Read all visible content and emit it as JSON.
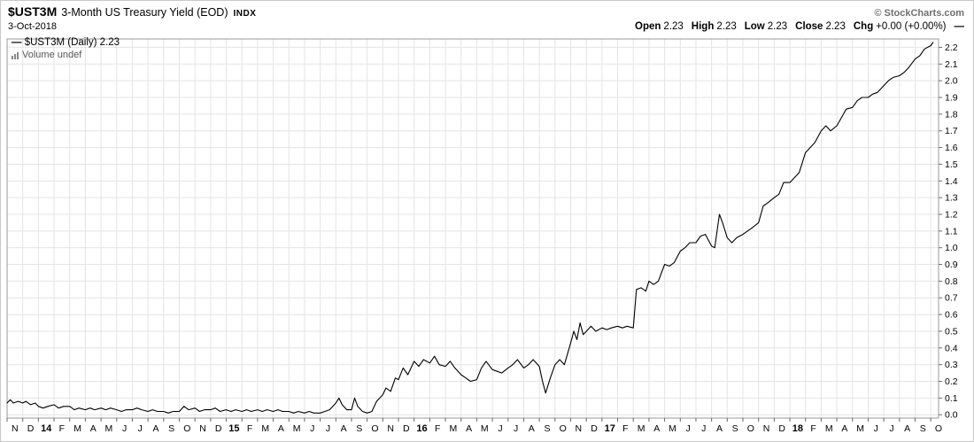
{
  "header": {
    "symbol": "$UST3M",
    "title": "3-Month US Treasury Yield (EOD)",
    "exchange": "INDX",
    "copyright": "© StockCharts.com",
    "date": "3-Oct-2018",
    "dash": "—",
    "quote": {
      "items": [
        {
          "label": "Open",
          "value": "2.23"
        },
        {
          "label": "High",
          "value": "2.23"
        },
        {
          "label": "Low",
          "value": "2.23"
        },
        {
          "label": "Close",
          "value": "2.23"
        },
        {
          "label": "Chg",
          "value": "+0.00 (+0.00%)"
        }
      ]
    }
  },
  "legend": {
    "marker": "—",
    "series_text": "$UST3M (Daily) 2.23",
    "volume_text": "Volume undef"
  },
  "colors": {
    "line": "#000000",
    "grid": "#e4e4e4",
    "axis": "#999999",
    "tick": "#666666",
    "text": "#000000",
    "muted": "#707070"
  },
  "chart_data": {
    "type": "line",
    "title": "$UST3M 3-Month US Treasury Yield (EOD) INDX",
    "xlabel": "",
    "ylabel": "",
    "x_unit": "months since Nov 2013",
    "xlim": [
      0,
      59.5
    ],
    "ylim": [
      -0.02,
      2.25
    ],
    "grid": true,
    "legend_position": "top-left",
    "last_value": 2.23,
    "yticks": [
      "0.0",
      "0.1",
      "0.2",
      "0.3",
      "0.4",
      "0.5",
      "0.6",
      "0.7",
      "0.8",
      "0.9",
      "1.0",
      "1.1",
      "1.2",
      "1.3",
      "1.4",
      "1.5",
      "1.6",
      "1.7",
      "1.8",
      "1.9",
      "2.0",
      "2.1",
      "2.2"
    ],
    "x_labels": [
      "N",
      "D",
      "14",
      "F",
      "M",
      "A",
      "M",
      "J",
      "J",
      "A",
      "S",
      "O",
      "N",
      "D",
      "15",
      "F",
      "M",
      "A",
      "M",
      "J",
      "J",
      "A",
      "S",
      "O",
      "N",
      "D",
      "16",
      "F",
      "M",
      "A",
      "M",
      "J",
      "J",
      "A",
      "S",
      "O",
      "N",
      "D",
      "17",
      "F",
      "M",
      "A",
      "M",
      "J",
      "J",
      "A",
      "S",
      "O",
      "N",
      "D",
      "18",
      "F",
      "M",
      "A",
      "M",
      "J",
      "J",
      "A",
      "S",
      "O"
    ],
    "series": [
      {
        "name": "$UST3M Daily Close",
        "color": "#000000",
        "points": [
          [
            0,
            0.07
          ],
          [
            0.2,
            0.09
          ],
          [
            0.4,
            0.07
          ],
          [
            0.7,
            0.08
          ],
          [
            1,
            0.07
          ],
          [
            1.2,
            0.08
          ],
          [
            1.5,
            0.06
          ],
          [
            1.8,
            0.07
          ],
          [
            2,
            0.05
          ],
          [
            2.3,
            0.04
          ],
          [
            2.6,
            0.05
          ],
          [
            3,
            0.06
          ],
          [
            3.3,
            0.04
          ],
          [
            3.6,
            0.05
          ],
          [
            4,
            0.05
          ],
          [
            4.3,
            0.03
          ],
          [
            4.6,
            0.04
          ],
          [
            5,
            0.03
          ],
          [
            5.3,
            0.04
          ],
          [
            5.6,
            0.03
          ],
          [
            6,
            0.04
          ],
          [
            6.3,
            0.03
          ],
          [
            6.6,
            0.04
          ],
          [
            7,
            0.03
          ],
          [
            7.3,
            0.02
          ],
          [
            7.6,
            0.03
          ],
          [
            8,
            0.03
          ],
          [
            8.3,
            0.04
          ],
          [
            8.6,
            0.03
          ],
          [
            9,
            0.02
          ],
          [
            9.3,
            0.03
          ],
          [
            9.6,
            0.02
          ],
          [
            10,
            0.02
          ],
          [
            10.3,
            0.01
          ],
          [
            10.6,
            0.02
          ],
          [
            11,
            0.02
          ],
          [
            11.3,
            0.05
          ],
          [
            11.6,
            0.03
          ],
          [
            12,
            0.04
          ],
          [
            12.3,
            0.02
          ],
          [
            12.6,
            0.03
          ],
          [
            13,
            0.03
          ],
          [
            13.3,
            0.04
          ],
          [
            13.6,
            0.02
          ],
          [
            14,
            0.03
          ],
          [
            14.3,
            0.02
          ],
          [
            14.6,
            0.03
          ],
          [
            15,
            0.02
          ],
          [
            15.3,
            0.03
          ],
          [
            15.6,
            0.02
          ],
          [
            16,
            0.03
          ],
          [
            16.3,
            0.02
          ],
          [
            16.6,
            0.03
          ],
          [
            17,
            0.02
          ],
          [
            17.3,
            0.03
          ],
          [
            17.6,
            0.02
          ],
          [
            18,
            0.02
          ],
          [
            18.3,
            0.01
          ],
          [
            18.6,
            0.02
          ],
          [
            19,
            0.01
          ],
          [
            19.3,
            0.02
          ],
          [
            19.6,
            0.01
          ],
          [
            20,
            0.01
          ],
          [
            20.3,
            0.02
          ],
          [
            20.6,
            0.03
          ],
          [
            21,
            0.07
          ],
          [
            21.2,
            0.1
          ],
          [
            21.4,
            0.06
          ],
          [
            21.7,
            0.03
          ],
          [
            22,
            0.03
          ],
          [
            22.2,
            0.1
          ],
          [
            22.4,
            0.05
          ],
          [
            22.7,
            0.02
          ],
          [
            23,
            0.01
          ],
          [
            23.3,
            0.02
          ],
          [
            23.6,
            0.08
          ],
          [
            24,
            0.12
          ],
          [
            24.2,
            0.16
          ],
          [
            24.5,
            0.14
          ],
          [
            24.8,
            0.22
          ],
          [
            25,
            0.21
          ],
          [
            25.3,
            0.28
          ],
          [
            25.6,
            0.24
          ],
          [
            26,
            0.32
          ],
          [
            26.3,
            0.29
          ],
          [
            26.6,
            0.33
          ],
          [
            27,
            0.31
          ],
          [
            27.3,
            0.35
          ],
          [
            27.6,
            0.3
          ],
          [
            28,
            0.29
          ],
          [
            28.3,
            0.32
          ],
          [
            28.6,
            0.28
          ],
          [
            29,
            0.24
          ],
          [
            29.3,
            0.22
          ],
          [
            29.6,
            0.2
          ],
          [
            30,
            0.21
          ],
          [
            30.3,
            0.28
          ],
          [
            30.6,
            0.32
          ],
          [
            31,
            0.27
          ],
          [
            31.3,
            0.26
          ],
          [
            31.6,
            0.25
          ],
          [
            32,
            0.28
          ],
          [
            32.3,
            0.3
          ],
          [
            32.6,
            0.33
          ],
          [
            33,
            0.28
          ],
          [
            33.3,
            0.3
          ],
          [
            33.6,
            0.33
          ],
          [
            34,
            0.29
          ],
          [
            34.2,
            0.2
          ],
          [
            34.4,
            0.13
          ],
          [
            34.7,
            0.22
          ],
          [
            35,
            0.3
          ],
          [
            35.3,
            0.33
          ],
          [
            35.6,
            0.3
          ],
          [
            36,
            0.43
          ],
          [
            36.2,
            0.5
          ],
          [
            36.4,
            0.45
          ],
          [
            36.6,
            0.55
          ],
          [
            36.8,
            0.48
          ],
          [
            37,
            0.5
          ],
          [
            37.3,
            0.53
          ],
          [
            37.6,
            0.5
          ],
          [
            38,
            0.52
          ],
          [
            38.3,
            0.51
          ],
          [
            38.6,
            0.52
          ],
          [
            39,
            0.53
          ],
          [
            39.3,
            0.52
          ],
          [
            39.6,
            0.53
          ],
          [
            40,
            0.52
          ],
          [
            40.2,
            0.75
          ],
          [
            40.5,
            0.76
          ],
          [
            40.8,
            0.74
          ],
          [
            41,
            0.8
          ],
          [
            41.3,
            0.78
          ],
          [
            41.6,
            0.8
          ],
          [
            42,
            0.9
          ],
          [
            42.3,
            0.89
          ],
          [
            42.6,
            0.91
          ],
          [
            43,
            0.98
          ],
          [
            43.3,
            1
          ],
          [
            43.6,
            1.03
          ],
          [
            44,
            1.03
          ],
          [
            44.3,
            1.07
          ],
          [
            44.6,
            1.08
          ],
          [
            45,
            1.01
          ],
          [
            45.2,
            1
          ],
          [
            45.5,
            1.2
          ],
          [
            45.7,
            1.15
          ],
          [
            46,
            1.06
          ],
          [
            46.3,
            1.03
          ],
          [
            46.6,
            1.06
          ],
          [
            47,
            1.08
          ],
          [
            47.3,
            1.1
          ],
          [
            47.6,
            1.12
          ],
          [
            48,
            1.15
          ],
          [
            48.3,
            1.25
          ],
          [
            48.6,
            1.27
          ],
          [
            49,
            1.3
          ],
          [
            49.3,
            1.32
          ],
          [
            49.6,
            1.39
          ],
          [
            50,
            1.39
          ],
          [
            50.3,
            1.42
          ],
          [
            50.6,
            1.45
          ],
          [
            51,
            1.57
          ],
          [
            51.3,
            1.6
          ],
          [
            51.6,
            1.63
          ],
          [
            52,
            1.7
          ],
          [
            52.3,
            1.73
          ],
          [
            52.6,
            1.7
          ],
          [
            53,
            1.73
          ],
          [
            53.3,
            1.78
          ],
          [
            53.6,
            1.83
          ],
          [
            54,
            1.84
          ],
          [
            54.3,
            1.88
          ],
          [
            54.6,
            1.9
          ],
          [
            55,
            1.9
          ],
          [
            55.3,
            1.92
          ],
          [
            55.6,
            1.93
          ],
          [
            56,
            1.97
          ],
          [
            56.3,
            2
          ],
          [
            56.6,
            2.02
          ],
          [
            57,
            2.03
          ],
          [
            57.3,
            2.05
          ],
          [
            57.6,
            2.08
          ],
          [
            58,
            2.13
          ],
          [
            58.3,
            2.15
          ],
          [
            58.6,
            2.19
          ],
          [
            59,
            2.21
          ],
          [
            59.15,
            2.23
          ]
        ]
      }
    ]
  }
}
